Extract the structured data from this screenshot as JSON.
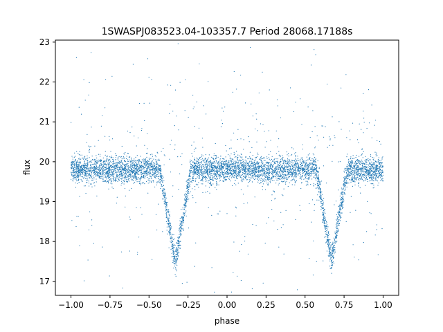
{
  "chart_data": {
    "type": "scatter",
    "title": "1SWASPJ083523.04-103357.7 Period 28068.17188s",
    "xlabel": "phase",
    "ylabel": "flux",
    "xlim": [
      -1.1,
      1.1
    ],
    "ylim": [
      16.65,
      23.05
    ],
    "xticks": [
      -1.0,
      -0.75,
      -0.5,
      -0.25,
      0.0,
      0.25,
      0.5,
      0.75,
      1.0
    ],
    "xtick_labels": [
      "−1.00",
      "−0.75",
      "−0.50",
      "−0.25",
      "0.00",
      "0.25",
      "0.50",
      "0.75",
      "1.00"
    ],
    "yticks": [
      17,
      18,
      19,
      20,
      21,
      22,
      23
    ],
    "ytick_labels": [
      "17",
      "18",
      "19",
      "20",
      "21",
      "22",
      "23"
    ],
    "grid": false,
    "marker_color": "#1f77b4",
    "series": [
      {
        "baseline_flux": 19.8,
        "eclipse_phase_centers": [
          -0.33,
          0.67
        ],
        "eclipse_min_flux": 17.5,
        "eclipse_half_width_phase": 0.1,
        "x_range": [
          -1.0,
          1.0
        ]
      }
    ]
  }
}
